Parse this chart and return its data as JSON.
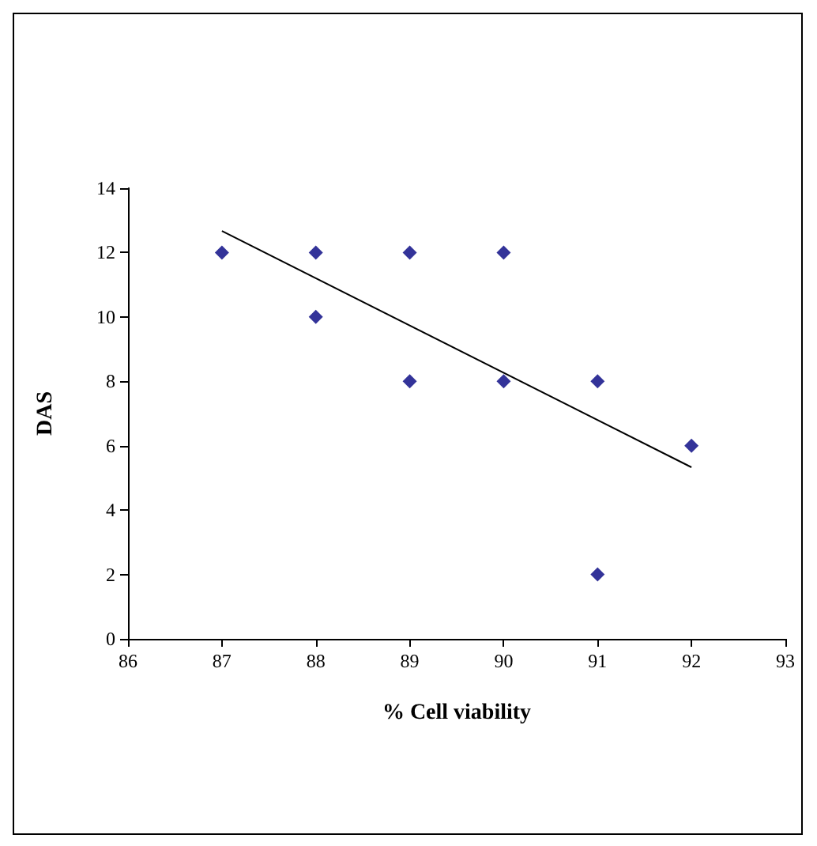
{
  "chart_data": {
    "type": "scatter",
    "xlabel": "% Cell viability",
    "ylabel": "DAS",
    "xlim": [
      86,
      93
    ],
    "xticks": [
      86,
      87,
      88,
      89,
      90,
      91,
      92,
      93
    ],
    "ylim": [
      0,
      14
    ],
    "yticks": [
      0,
      2,
      4,
      6,
      8,
      10,
      12,
      14
    ],
    "grid": false,
    "marker": "diamond",
    "series": [
      {
        "color": "#000080",
        "x": [
          87,
          88,
          88,
          89,
          89,
          90,
          90,
          91,
          91,
          92
        ],
        "values": [
          12,
          12,
          10,
          12,
          8,
          12,
          8,
          8,
          2,
          6
        ]
      },
      {
        "type": "line",
        "color": "#000000",
        "marker": "none",
        "x": [
          87,
          92
        ],
        "values": [
          12.67,
          5.33
        ]
      }
    ]
  }
}
